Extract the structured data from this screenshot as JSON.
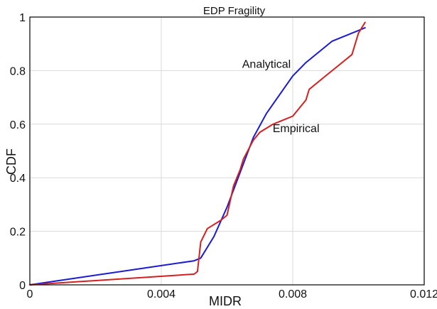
{
  "chart_data": {
    "type": "line",
    "title": "EDP Fragility",
    "xlabel": "MIDR",
    "ylabel": "CDF",
    "xlim": [
      0,
      0.012
    ],
    "ylim": [
      0,
      1
    ],
    "xticks": [
      0,
      0.004,
      0.008,
      0.012
    ],
    "xtick_labels": [
      "0",
      "0.004",
      "0.008",
      "0.012"
    ],
    "yticks": [
      0,
      0.2,
      0.4,
      0.6,
      0.8,
      1
    ],
    "ytick_labels": [
      "0",
      "0.2",
      "0.4",
      "0.6",
      "0.8",
      "1"
    ],
    "grid": true,
    "series": [
      {
        "name": "Analytical",
        "color": "#1a1ad6",
        "x": [
          0,
          0.005,
          0.0052,
          0.0056,
          0.006,
          0.0064,
          0.0068,
          0.0072,
          0.0076,
          0.008,
          0.0084,
          0.0088,
          0.0092,
          0.0096,
          0.01,
          0.0102
        ],
        "y": [
          0,
          0.09,
          0.1,
          0.18,
          0.29,
          0.42,
          0.55,
          0.64,
          0.71,
          0.78,
          0.83,
          0.87,
          0.91,
          0.93,
          0.95,
          0.96
        ]
      },
      {
        "name": "Empirical",
        "color": "#d42020",
        "x": [
          0,
          0.005,
          0.0051,
          0.0052,
          0.0054,
          0.0058,
          0.006,
          0.0062,
          0.0064,
          0.0065,
          0.0068,
          0.007,
          0.0074,
          0.0078,
          0.008,
          0.0084,
          0.0085,
          0.009,
          0.0094,
          0.0098,
          0.01,
          0.0102
        ],
        "y": [
          0,
          0.04,
          0.05,
          0.16,
          0.21,
          0.24,
          0.26,
          0.37,
          0.43,
          0.47,
          0.54,
          0.57,
          0.6,
          0.62,
          0.63,
          0.69,
          0.73,
          0.78,
          0.82,
          0.86,
          0.94,
          0.98
        ]
      }
    ],
    "annotations": [
      {
        "text": "Analytical",
        "x": 0.0072,
        "y": 0.81
      },
      {
        "text": "Empirical",
        "x": 0.0081,
        "y": 0.57
      }
    ]
  }
}
